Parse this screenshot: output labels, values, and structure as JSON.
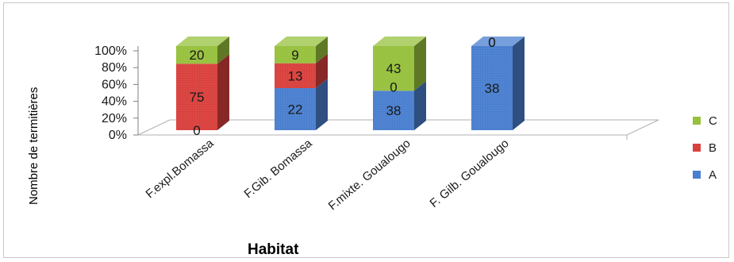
{
  "chart_data": {
    "type": "bar",
    "stacked": "percent",
    "three_d": true,
    "xlabel": "Habitat",
    "ylabel": "Nombre de termitières",
    "categories": [
      "F.expl.Bomassa",
      "F.Gib. Bomassa",
      "F.mixte. Goualougo",
      "F. Gilb. Goualougo"
    ],
    "y_ticks": [
      "0%",
      "20%",
      "40%",
      "60%",
      "80%",
      "100%"
    ],
    "ylim": [
      0,
      100
    ],
    "series": [
      {
        "name": "A",
        "color": "#4a7fcf",
        "values": [
          0,
          22,
          38,
          38
        ]
      },
      {
        "name": "B",
        "color": "#d9413d",
        "values": [
          75,
          13,
          0,
          0
        ]
      },
      {
        "name": "C",
        "color": "#97c13d",
        "values": [
          20,
          9,
          43,
          0
        ]
      }
    ],
    "legend_position": "right",
    "legend_order": [
      "C",
      "B",
      "A"
    ],
    "grid": false
  }
}
